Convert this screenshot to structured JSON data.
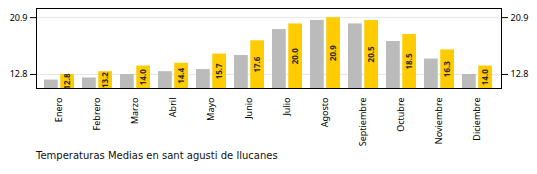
{
  "chart_data": {
    "type": "bar",
    "title": "Temperaturas Medias en sant agusti de llucanes",
    "categories": [
      "Enero",
      "Febrero",
      "Marzo",
      "Abril",
      "Mayo",
      "Junio",
      "Julio",
      "Agosto",
      "Septiembre",
      "Octubre",
      "Noviembre",
      "Diciembre"
    ],
    "series": [
      {
        "color": "#BBBBBB",
        "values": [
          12.0,
          12.3,
          12.8,
          13.2,
          13.5,
          15.5,
          19.2,
          20.5,
          20.0,
          17.5,
          15.0,
          12.8
        ]
      },
      {
        "color": "#FFCC00",
        "values": [
          12.8,
          13.2,
          14.0,
          14.4,
          15.7,
          17.6,
          20.0,
          20.9,
          20.5,
          18.5,
          16.3,
          14.0
        ],
        "data_labels": true,
        "value_labels": [
          "12.8",
          "13.2",
          "14.0",
          "14.4",
          "15.7",
          "17.6",
          "20.0",
          "20.9",
          "20.5",
          "18.5",
          "16.3",
          "14.0"
        ]
      }
    ],
    "ylim": [
      10.8,
      22.2
    ],
    "yticks": [
      12.8,
      20.9
    ],
    "grid": true
  }
}
